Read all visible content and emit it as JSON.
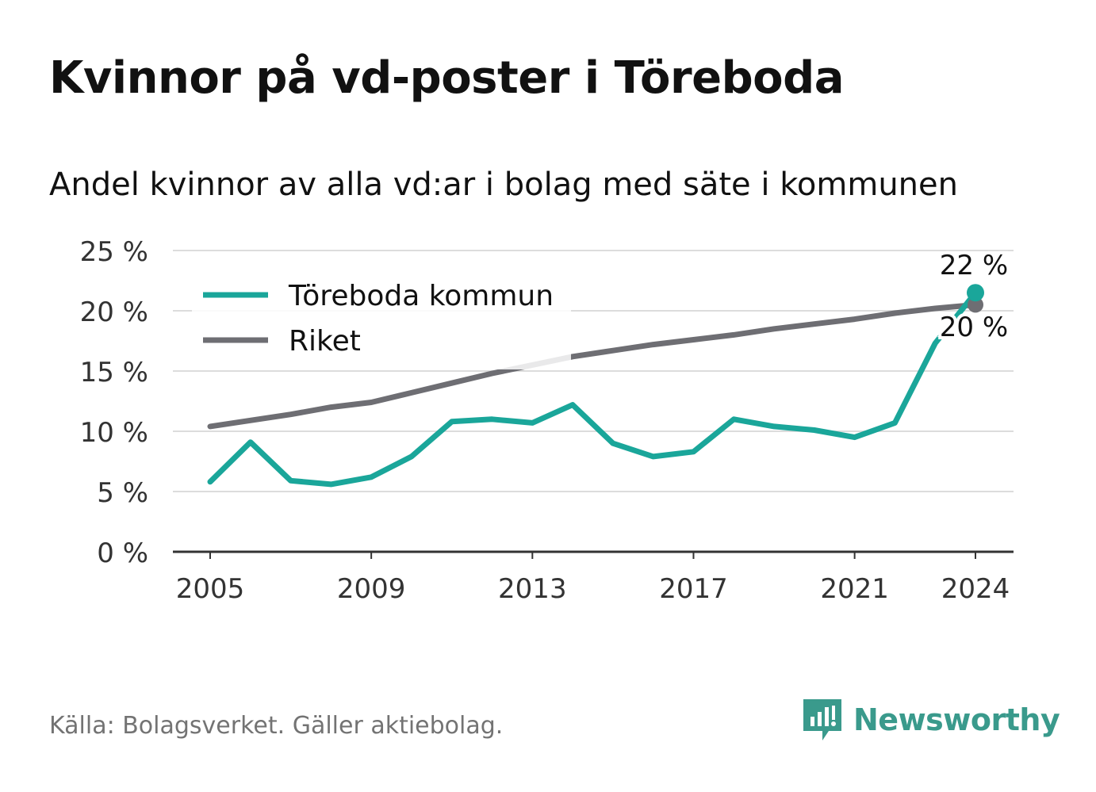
{
  "title": "Kvinnor på vd-poster i Töreboda",
  "subtitle": "Andel kvinnor av alla vd:ar i bolag med säte i kommunen",
  "source": "Källa: Bolagsverket. Gäller aktiebolag.",
  "brand": "Newsworthy",
  "colors": {
    "local": "#1aa69a",
    "national": "#6e6e73",
    "grid": "#dcdcdc",
    "axis": "#333333",
    "brand": "#3a9a8c"
  },
  "chart_data": {
    "type": "line",
    "x": [
      2005,
      2006,
      2007,
      2008,
      2009,
      2010,
      2011,
      2012,
      2013,
      2014,
      2015,
      2016,
      2017,
      2018,
      2019,
      2020,
      2021,
      2022,
      2023,
      2024
    ],
    "series": [
      {
        "name": "Töreboda kommun",
        "color": "#1aa69a",
        "values": [
          5.8,
          9.1,
          5.9,
          5.6,
          6.2,
          7.9,
          10.8,
          11.0,
          10.7,
          12.2,
          9.0,
          7.9,
          8.3,
          11.0,
          10.4,
          10.1,
          9.5,
          10.7,
          17.3,
          21.5
        ]
      },
      {
        "name": "Riket",
        "color": "#6e6e73",
        "values": [
          10.4,
          10.9,
          11.4,
          12.0,
          12.4,
          13.2,
          14.0,
          14.8,
          15.5,
          16.2,
          16.7,
          17.2,
          17.6,
          18.0,
          18.5,
          18.9,
          19.3,
          19.8,
          20.2,
          20.5
        ]
      }
    ],
    "xticks": [
      2005,
      2009,
      2013,
      2017,
      2021,
      2024
    ],
    "xtick_labels": [
      "2005",
      "2009",
      "2013",
      "2017",
      "2021",
      "2024"
    ],
    "yticks": [
      0,
      5,
      10,
      15,
      20,
      25
    ],
    "ytick_labels": [
      "0 %",
      "5 %",
      "10 %",
      "15 %",
      "20 %",
      "25 %"
    ],
    "ylim": [
      0,
      25
    ],
    "xlim": [
      2005,
      2024
    ],
    "grid": true,
    "legend": "top-left",
    "end_labels": [
      {
        "series": "Töreboda kommun",
        "text": "22 %"
      },
      {
        "series": "Riket",
        "text": "20 %"
      }
    ]
  }
}
